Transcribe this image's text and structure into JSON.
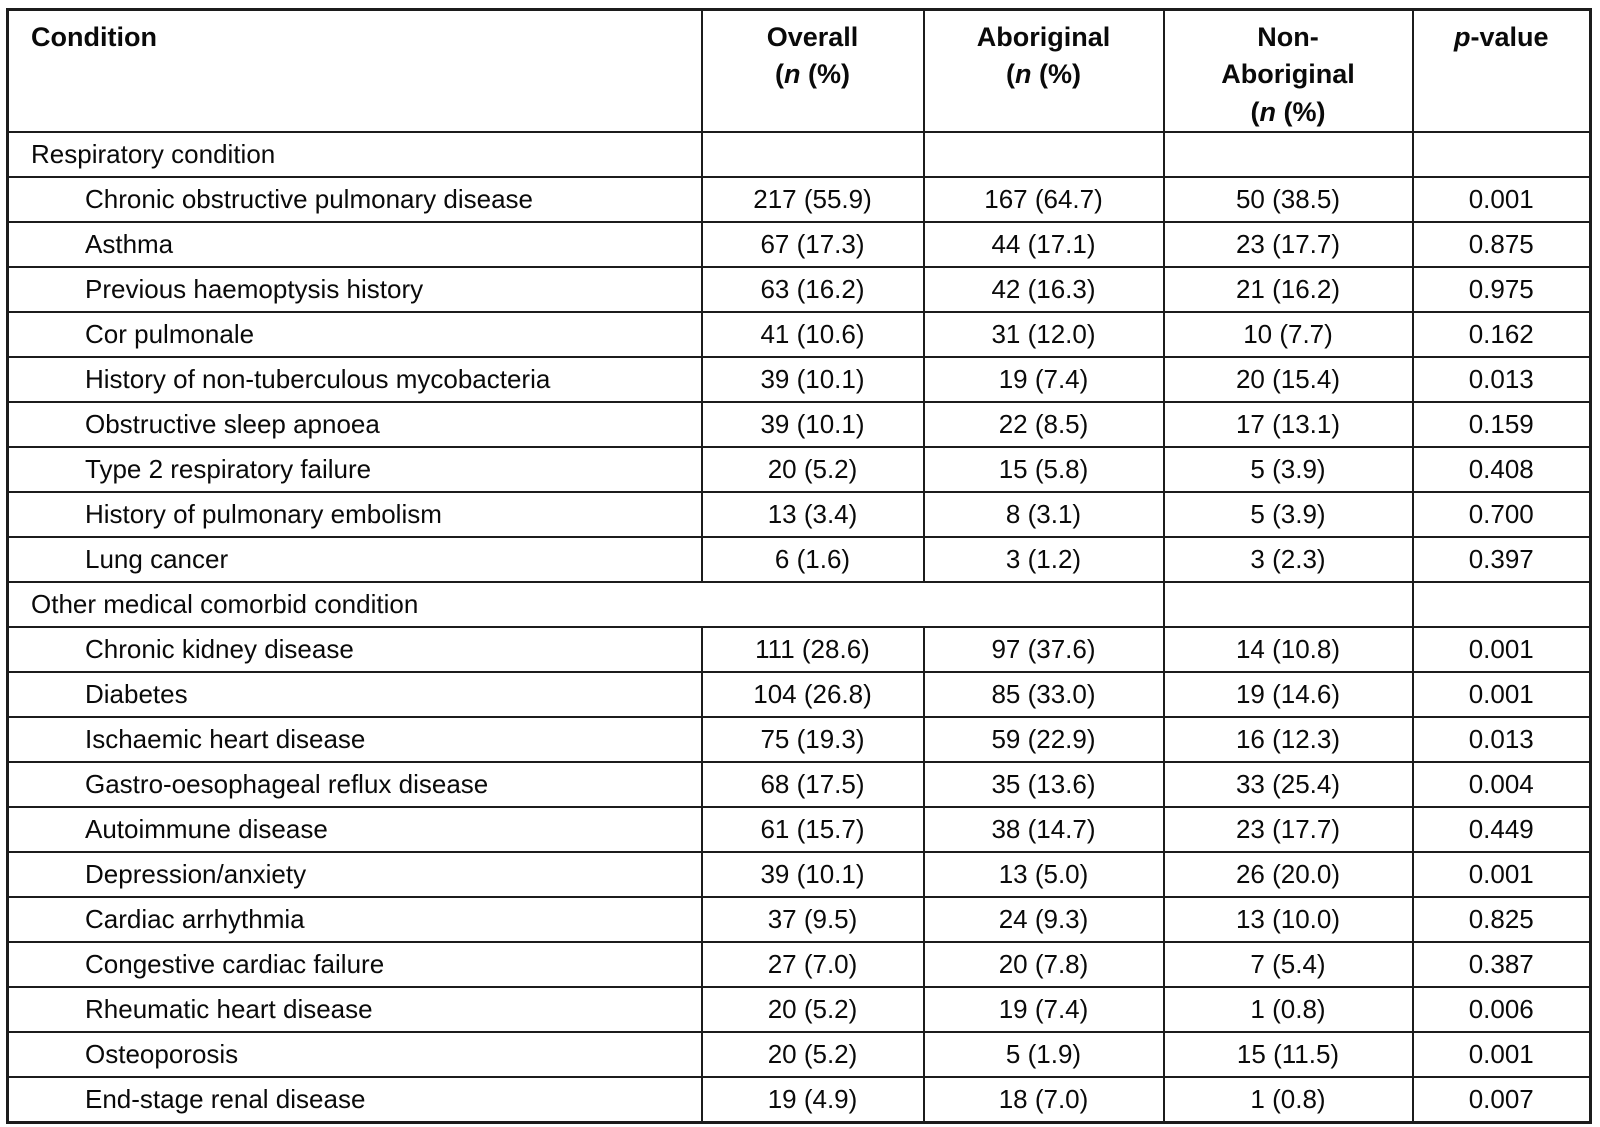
{
  "page": {
    "background_color": "#ffffff",
    "border_color": "#1c1c1c",
    "text_color": "#0a0a0a"
  },
  "table": {
    "header": {
      "condition": "Condition",
      "overall": "Overall",
      "aboriginal": "Aboriginal",
      "non_aboriginal": "Non-Aboriginal",
      "count_label": "(n (%)",
      "p_value": "p-value"
    },
    "rows": [
      {
        "section": true,
        "span": 1,
        "condition": "Respiratory condition"
      },
      {
        "condition": "Chronic obstructive pulmonary disease",
        "overall": "217 (55.9)",
        "aboriginal": "167 (64.7)",
        "non_aboriginal": "50 (38.5)",
        "p_value": "0.001"
      },
      {
        "condition": "Asthma",
        "overall": "67 (17.3)",
        "aboriginal": "44 (17.1)",
        "non_aboriginal": "23 (17.7)",
        "p_value": "0.875"
      },
      {
        "condition": "Previous haemoptysis history",
        "overall": "63 (16.2)",
        "aboriginal": "42 (16.3)",
        "non_aboriginal": "21 (16.2)",
        "p_value": "0.975"
      },
      {
        "condition": "Cor pulmonale",
        "overall": "41 (10.6)",
        "aboriginal": "31 (12.0)",
        "non_aboriginal": "10 (7.7)",
        "p_value": "0.162"
      },
      {
        "condition": "History of non-tuberculous mycobacteria",
        "overall": "39 (10.1)",
        "aboriginal": "19 (7.4)",
        "non_aboriginal": "20 (15.4)",
        "p_value": "0.013"
      },
      {
        "condition": "Obstructive sleep apnoea",
        "overall": "39 (10.1)",
        "aboriginal": "22 (8.5)",
        "non_aboriginal": "17 (13.1)",
        "p_value": "0.159"
      },
      {
        "condition": "Type 2 respiratory failure",
        "overall": "20 (5.2)",
        "aboriginal": "15 (5.8)",
        "non_aboriginal": "5 (3.9)",
        "p_value": "0.408"
      },
      {
        "condition": "History of pulmonary embolism",
        "overall": "13 (3.4)",
        "aboriginal": "8 (3.1)",
        "non_aboriginal": "5 (3.9)",
        "p_value": "0.700"
      },
      {
        "condition": "Lung cancer",
        "overall": "6 (1.6)",
        "aboriginal": "3 (1.2)",
        "non_aboriginal": "3 (2.3)",
        "p_value": "0.397"
      },
      {
        "section": true,
        "span": 3,
        "condition": "Other medical comorbid condition"
      },
      {
        "condition": "Chronic kidney disease",
        "overall": "111 (28.6)",
        "aboriginal": "97 (37.6)",
        "non_aboriginal": "14 (10.8)",
        "p_value": "0.001"
      },
      {
        "condition": "Diabetes",
        "overall": "104 (26.8)",
        "aboriginal": "85 (33.0)",
        "non_aboriginal": "19 (14.6)",
        "p_value": "0.001"
      },
      {
        "condition": "Ischaemic heart disease",
        "overall": "75 (19.3)",
        "aboriginal": "59 (22.9)",
        "non_aboriginal": "16 (12.3)",
        "p_value": "0.013"
      },
      {
        "condition": "Gastro-oesophageal reflux disease",
        "overall": "68 (17.5)",
        "aboriginal": "35 (13.6)",
        "non_aboriginal": "33 (25.4)",
        "p_value": "0.004"
      },
      {
        "condition": "Autoimmune disease",
        "overall": "61 (15.7)",
        "aboriginal": "38 (14.7)",
        "non_aboriginal": "23 (17.7)",
        "p_value": "0.449"
      },
      {
        "condition": "Depression/anxiety",
        "overall": "39 (10.1)",
        "aboriginal": "13 (5.0)",
        "non_aboriginal": "26 (20.0)",
        "p_value": "0.001"
      },
      {
        "condition": "Cardiac arrhythmia",
        "overall": "37 (9.5)",
        "aboriginal": "24 (9.3)",
        "non_aboriginal": "13 (10.0)",
        "p_value": "0.825"
      },
      {
        "condition": "Congestive cardiac failure",
        "overall": "27 (7.0)",
        "aboriginal": "20 (7.8)",
        "non_aboriginal": "7 (5.4)",
        "p_value": "0.387"
      },
      {
        "condition": "Rheumatic heart disease",
        "overall": "20 (5.2)",
        "aboriginal": "19 (7.4)",
        "non_aboriginal": "1 (0.8)",
        "p_value": "0.006"
      },
      {
        "condition": "Osteoporosis",
        "overall": "20 (5.2)",
        "aboriginal": "5 (1.9)",
        "non_aboriginal": "15 (11.5)",
        "p_value": "0.001"
      },
      {
        "condition": "End-stage renal disease",
        "overall": "19 (4.9)",
        "aboriginal": "18 (7.0)",
        "non_aboriginal": "1 (0.8)",
        "p_value": "0.007"
      }
    ]
  }
}
